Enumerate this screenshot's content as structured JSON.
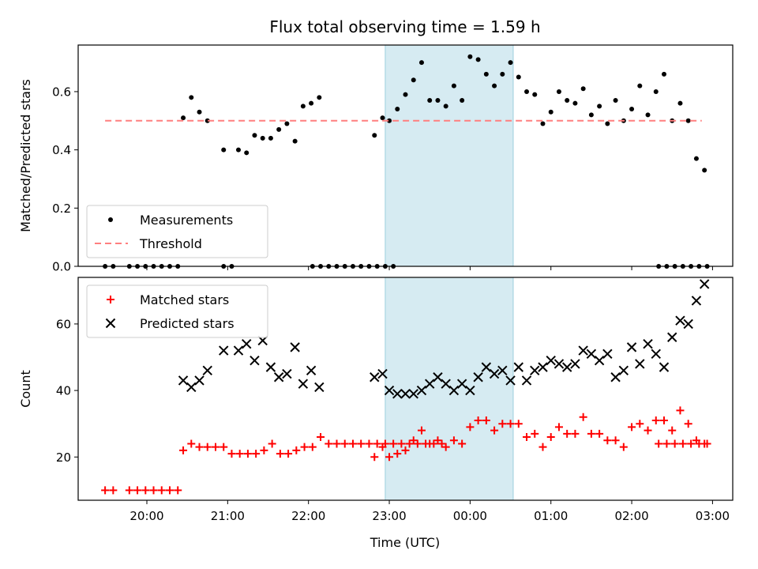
{
  "chart_data": [
    {
      "type": "scatter",
      "title": "Flux total observing time = 1.59 h",
      "xlabel": "",
      "ylabel": "Matched/Predicted stars",
      "ylim": [
        0,
        0.76
      ],
      "yticks": [
        "0.0",
        "0.2",
        "0.4",
        "0.6"
      ],
      "shaded_region": [
        "22:57",
        "00:32"
      ],
      "threshold": 0.5,
      "legend": {
        "position": "lower-left",
        "entries": [
          "Measurements",
          "Threshold"
        ]
      },
      "series": [
        {
          "name": "Measurements",
          "marker": "dot",
          "color": "#000000",
          "points": [
            [
              "19:29",
              0
            ],
            [
              "19:35",
              0
            ],
            [
              "19:47",
              0
            ],
            [
              "19:53",
              0
            ],
            [
              "19:59",
              0
            ],
            [
              "20:05",
              0
            ],
            [
              "20:11",
              0
            ],
            [
              "20:17",
              0
            ],
            [
              "20:23",
              0
            ],
            [
              "20:27",
              0.51
            ],
            [
              "20:33",
              0.58
            ],
            [
              "20:39",
              0.53
            ],
            [
              "20:45",
              0.5
            ],
            [
              "20:57",
              0
            ],
            [
              "21:03",
              0
            ],
            [
              "20:57",
              0.4
            ],
            [
              "21:08",
              0.4
            ],
            [
              "21:14",
              0.39
            ],
            [
              "21:20",
              0.45
            ],
            [
              "21:26",
              0.44
            ],
            [
              "21:32",
              0.44
            ],
            [
              "21:38",
              0.47
            ],
            [
              "21:44",
              0.49
            ],
            [
              "21:50",
              0.43
            ],
            [
              "21:56",
              0.55
            ],
            [
              "22:02",
              0.56
            ],
            [
              "22:08",
              0.58
            ],
            [
              "22:03",
              0
            ],
            [
              "22:09",
              0
            ],
            [
              "22:15",
              0
            ],
            [
              "22:21",
              0
            ],
            [
              "22:27",
              0
            ],
            [
              "22:33",
              0
            ],
            [
              "22:39",
              0
            ],
            [
              "22:45",
              0
            ],
            [
              "22:51",
              0
            ],
            [
              "22:57",
              0
            ],
            [
              "23:03",
              0
            ],
            [
              "22:49",
              0.45
            ],
            [
              "22:55",
              0.51
            ],
            [
              "23:00",
              0.5
            ],
            [
              "23:06",
              0.54
            ],
            [
              "23:12",
              0.59
            ],
            [
              "23:18",
              0.64
            ],
            [
              "23:24",
              0.7
            ],
            [
              "23:30",
              0.57
            ],
            [
              "23:36",
              0.57
            ],
            [
              "23:42",
              0.55
            ],
            [
              "23:48",
              0.62
            ],
            [
              "23:54",
              0.57
            ],
            [
              "00:00",
              0.72
            ],
            [
              "00:06",
              0.71
            ],
            [
              "00:12",
              0.66
            ],
            [
              "00:18",
              0.62
            ],
            [
              "00:24",
              0.66
            ],
            [
              "00:30",
              0.7
            ],
            [
              "00:36",
              0.65
            ],
            [
              "00:42",
              0.6
            ],
            [
              "00:48",
              0.59
            ],
            [
              "00:54",
              0.49
            ],
            [
              "01:00",
              0.53
            ],
            [
              "01:06",
              0.6
            ],
            [
              "01:12",
              0.57
            ],
            [
              "01:18",
              0.56
            ],
            [
              "01:24",
              0.61
            ],
            [
              "01:30",
              0.52
            ],
            [
              "01:36",
              0.55
            ],
            [
              "01:42",
              0.49
            ],
            [
              "01:48",
              0.57
            ],
            [
              "01:54",
              0.5
            ],
            [
              "02:00",
              0.54
            ],
            [
              "02:06",
              0.62
            ],
            [
              "02:12",
              0.52
            ],
            [
              "02:18",
              0.6
            ],
            [
              "02:24",
              0.66
            ],
            [
              "02:30",
              0.5
            ],
            [
              "02:36",
              0.56
            ],
            [
              "02:42",
              0.5
            ],
            [
              "02:48",
              0.37
            ],
            [
              "02:54",
              0.33
            ],
            [
              "02:20",
              0
            ],
            [
              "02:26",
              0
            ],
            [
              "02:32",
              0
            ],
            [
              "02:38",
              0
            ],
            [
              "02:44",
              0
            ],
            [
              "02:50",
              0
            ],
            [
              "02:56",
              0
            ]
          ]
        },
        {
          "name": "Threshold",
          "marker": "dashed-line",
          "color": "#ff7f7f",
          "points": [
            [
              "19:29",
              0.5
            ],
            [
              "02:52",
              0.5
            ]
          ]
        }
      ]
    },
    {
      "type": "scatter",
      "title": "",
      "xlabel": "Time (UTC)",
      "ylabel": "Count",
      "ylim": [
        7,
        74
      ],
      "yticks": [
        "20",
        "40",
        "60"
      ],
      "xticks": [
        "20:00",
        "21:00",
        "22:00",
        "23:00",
        "00:00",
        "01:00",
        "02:00",
        "03:00"
      ],
      "shaded_region": [
        "22:57",
        "00:32"
      ],
      "legend": {
        "position": "top-left",
        "entries": [
          "Matched stars",
          "Predicted stars"
        ]
      },
      "series": [
        {
          "name": "Matched stars",
          "marker": "plus",
          "color": "#ff0000",
          "points": [
            [
              "19:29",
              10
            ],
            [
              "19:35",
              10
            ],
            [
              "19:47",
              10
            ],
            [
              "19:53",
              10
            ],
            [
              "19:59",
              10
            ],
            [
              "20:05",
              10
            ],
            [
              "20:11",
              10
            ],
            [
              "20:17",
              10
            ],
            [
              "20:23",
              10
            ],
            [
              "20:27",
              22
            ],
            [
              "20:33",
              24
            ],
            [
              "20:39",
              23
            ],
            [
              "20:45",
              23
            ],
            [
              "20:51",
              23
            ],
            [
              "20:57",
              23
            ],
            [
              "21:03",
              21
            ],
            [
              "21:09",
              21
            ],
            [
              "21:15",
              21
            ],
            [
              "21:21",
              21
            ],
            [
              "21:27",
              22
            ],
            [
              "21:33",
              24
            ],
            [
              "21:39",
              21
            ],
            [
              "21:45",
              21
            ],
            [
              "21:51",
              22
            ],
            [
              "21:57",
              23
            ],
            [
              "22:03",
              23
            ],
            [
              "22:09",
              26
            ],
            [
              "22:15",
              24
            ],
            [
              "22:21",
              24
            ],
            [
              "22:27",
              24
            ],
            [
              "22:33",
              24
            ],
            [
              "22:39",
              24
            ],
            [
              "22:45",
              24
            ],
            [
              "22:51",
              24
            ],
            [
              "22:57",
              24
            ],
            [
              "23:03",
              24
            ],
            [
              "23:09",
              24
            ],
            [
              "23:15",
              24
            ],
            [
              "23:21",
              24
            ],
            [
              "23:27",
              24
            ],
            [
              "23:33",
              24
            ],
            [
              "23:39",
              24
            ],
            [
              "22:49",
              20
            ],
            [
              "22:55",
              23
            ],
            [
              "23:00",
              20
            ],
            [
              "23:06",
              21
            ],
            [
              "23:12",
              22
            ],
            [
              "23:18",
              25
            ],
            [
              "23:24",
              28
            ],
            [
              "23:30",
              24
            ],
            [
              "23:36",
              25
            ],
            [
              "23:42",
              23
            ],
            [
              "23:48",
              25
            ],
            [
              "23:54",
              24
            ],
            [
              "00:00",
              29
            ],
            [
              "00:06",
              31
            ],
            [
              "00:12",
              31
            ],
            [
              "00:18",
              28
            ],
            [
              "00:24",
              30
            ],
            [
              "00:30",
              30
            ],
            [
              "00:36",
              30
            ],
            [
              "00:42",
              26
            ],
            [
              "00:48",
              27
            ],
            [
              "00:54",
              23
            ],
            [
              "01:00",
              26
            ],
            [
              "01:06",
              29
            ],
            [
              "01:12",
              27
            ],
            [
              "01:18",
              27
            ],
            [
              "01:24",
              32
            ],
            [
              "01:30",
              27
            ],
            [
              "01:36",
              27
            ],
            [
              "01:42",
              25
            ],
            [
              "01:48",
              25
            ],
            [
              "01:54",
              23
            ],
            [
              "02:00",
              29
            ],
            [
              "02:06",
              30
            ],
            [
              "02:12",
              28
            ],
            [
              "02:18",
              31
            ],
            [
              "02:24",
              31
            ],
            [
              "02:30",
              28
            ],
            [
              "02:36",
              34
            ],
            [
              "02:42",
              30
            ],
            [
              "02:48",
              25
            ],
            [
              "02:54",
              24
            ],
            [
              "02:20",
              24
            ],
            [
              "02:26",
              24
            ],
            [
              "02:32",
              24
            ],
            [
              "02:38",
              24
            ],
            [
              "02:44",
              24
            ],
            [
              "02:50",
              24
            ],
            [
              "02:56",
              24
            ]
          ]
        },
        {
          "name": "Predicted stars",
          "marker": "x",
          "color": "#000000",
          "points": [
            [
              "20:27",
              43
            ],
            [
              "20:33",
              41
            ],
            [
              "20:39",
              43
            ],
            [
              "20:45",
              46
            ],
            [
              "20:57",
              52
            ],
            [
              "21:08",
              52
            ],
            [
              "21:14",
              54
            ],
            [
              "21:20",
              49
            ],
            [
              "21:26",
              55
            ],
            [
              "21:32",
              47
            ],
            [
              "21:38",
              44
            ],
            [
              "21:44",
              45
            ],
            [
              "21:50",
              53
            ],
            [
              "21:56",
              42
            ],
            [
              "22:02",
              46
            ],
            [
              "22:08",
              41
            ],
            [
              "22:49",
              44
            ],
            [
              "22:55",
              45
            ],
            [
              "23:00",
              40
            ],
            [
              "23:06",
              39
            ],
            [
              "23:12",
              39
            ],
            [
              "23:18",
              39
            ],
            [
              "23:24",
              40
            ],
            [
              "23:30",
              42
            ],
            [
              "23:36",
              44
            ],
            [
              "23:42",
              42
            ],
            [
              "23:48",
              40
            ],
            [
              "23:54",
              42
            ],
            [
              "00:00",
              40
            ],
            [
              "00:06",
              44
            ],
            [
              "00:12",
              47
            ],
            [
              "00:18",
              45
            ],
            [
              "00:24",
              46
            ],
            [
              "00:30",
              43
            ],
            [
              "00:36",
              47
            ],
            [
              "00:42",
              43
            ],
            [
              "00:48",
              46
            ],
            [
              "00:54",
              47
            ],
            [
              "01:00",
              49
            ],
            [
              "01:06",
              48
            ],
            [
              "01:12",
              47
            ],
            [
              "01:18",
              48
            ],
            [
              "01:24",
              52
            ],
            [
              "01:30",
              51
            ],
            [
              "01:36",
              49
            ],
            [
              "01:42",
              51
            ],
            [
              "01:48",
              44
            ],
            [
              "01:54",
              46
            ],
            [
              "02:00",
              53
            ],
            [
              "02:06",
              48
            ],
            [
              "02:12",
              54
            ],
            [
              "02:18",
              51
            ],
            [
              "02:24",
              47
            ],
            [
              "02:30",
              56
            ],
            [
              "02:36",
              61
            ],
            [
              "02:42",
              60
            ],
            [
              "02:48",
              67
            ],
            [
              "02:54",
              72
            ]
          ]
        }
      ]
    }
  ]
}
